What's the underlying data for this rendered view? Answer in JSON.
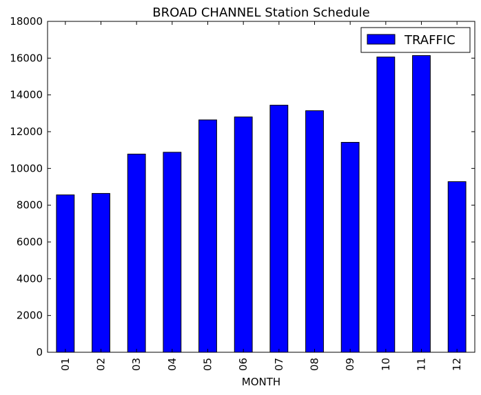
{
  "chart_data": {
    "type": "bar",
    "title": "BROAD CHANNEL Station Schedule",
    "xlabel": "MONTH",
    "ylabel": "",
    "categories": [
      "01",
      "02",
      "03",
      "04",
      "05",
      "06",
      "07",
      "08",
      "09",
      "10",
      "11",
      "12"
    ],
    "series": [
      {
        "name": "TRAFFIC",
        "color": "#0000ff",
        "values": [
          8560,
          8640,
          10780,
          10880,
          12640,
          12800,
          13440,
          13140,
          11420,
          16060,
          16140,
          9280
        ]
      }
    ],
    "ylim": [
      0,
      18000
    ],
    "yticks": [
      "0",
      "2000",
      "4000",
      "6000",
      "8000",
      "10000",
      "12000",
      "14000",
      "16000",
      "18000"
    ],
    "grid": false,
    "legend_position": "top-right"
  }
}
